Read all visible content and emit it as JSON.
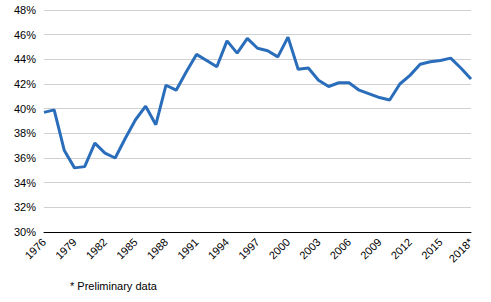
{
  "chart_data": {
    "type": "line",
    "annotation": "* Preliminary data",
    "categories": [
      "1976",
      null,
      null,
      "1979",
      null,
      null,
      "1982",
      null,
      null,
      "1985",
      null,
      null,
      "1988",
      null,
      null,
      "1991",
      null,
      null,
      "1994",
      null,
      null,
      "1997",
      null,
      null,
      "2000",
      null,
      null,
      "2003",
      null,
      null,
      "2006",
      null,
      null,
      "2009",
      null,
      null,
      "2012",
      null,
      null,
      "2015",
      null,
      null,
      "2018*"
    ],
    "values": [
      39.7,
      39.9,
      36.6,
      35.2,
      35.3,
      37.2,
      36.4,
      36.0,
      37.6,
      39.1,
      40.2,
      38.7,
      41.9,
      41.5,
      43.0,
      44.4,
      43.9,
      43.4,
      45.5,
      44.5,
      45.7,
      44.9,
      44.7,
      44.2,
      45.8,
      43.2,
      43.3,
      42.3,
      41.8,
      42.1,
      42.1,
      41.5,
      41.2,
      40.9,
      40.7,
      42.0,
      42.7,
      43.6,
      43.8,
      43.9,
      44.1,
      43.3,
      42.4
    ],
    "color": "#2a6ebb",
    "ylim": [
      30,
      48
    ],
    "yticks": [
      {
        "value": 30,
        "label": "30%"
      },
      {
        "value": 32,
        "label": "32%"
      },
      {
        "value": 34,
        "label": "34%"
      },
      {
        "value": 36,
        "label": "36%"
      },
      {
        "value": 38,
        "label": "38%"
      },
      {
        "value": 40,
        "label": "40%"
      },
      {
        "value": 42,
        "label": "42%"
      },
      {
        "value": 44,
        "label": "44%"
      },
      {
        "value": 46,
        "label": "46%"
      },
      {
        "value": 48,
        "label": "48%"
      }
    ],
    "grid": true
  }
}
